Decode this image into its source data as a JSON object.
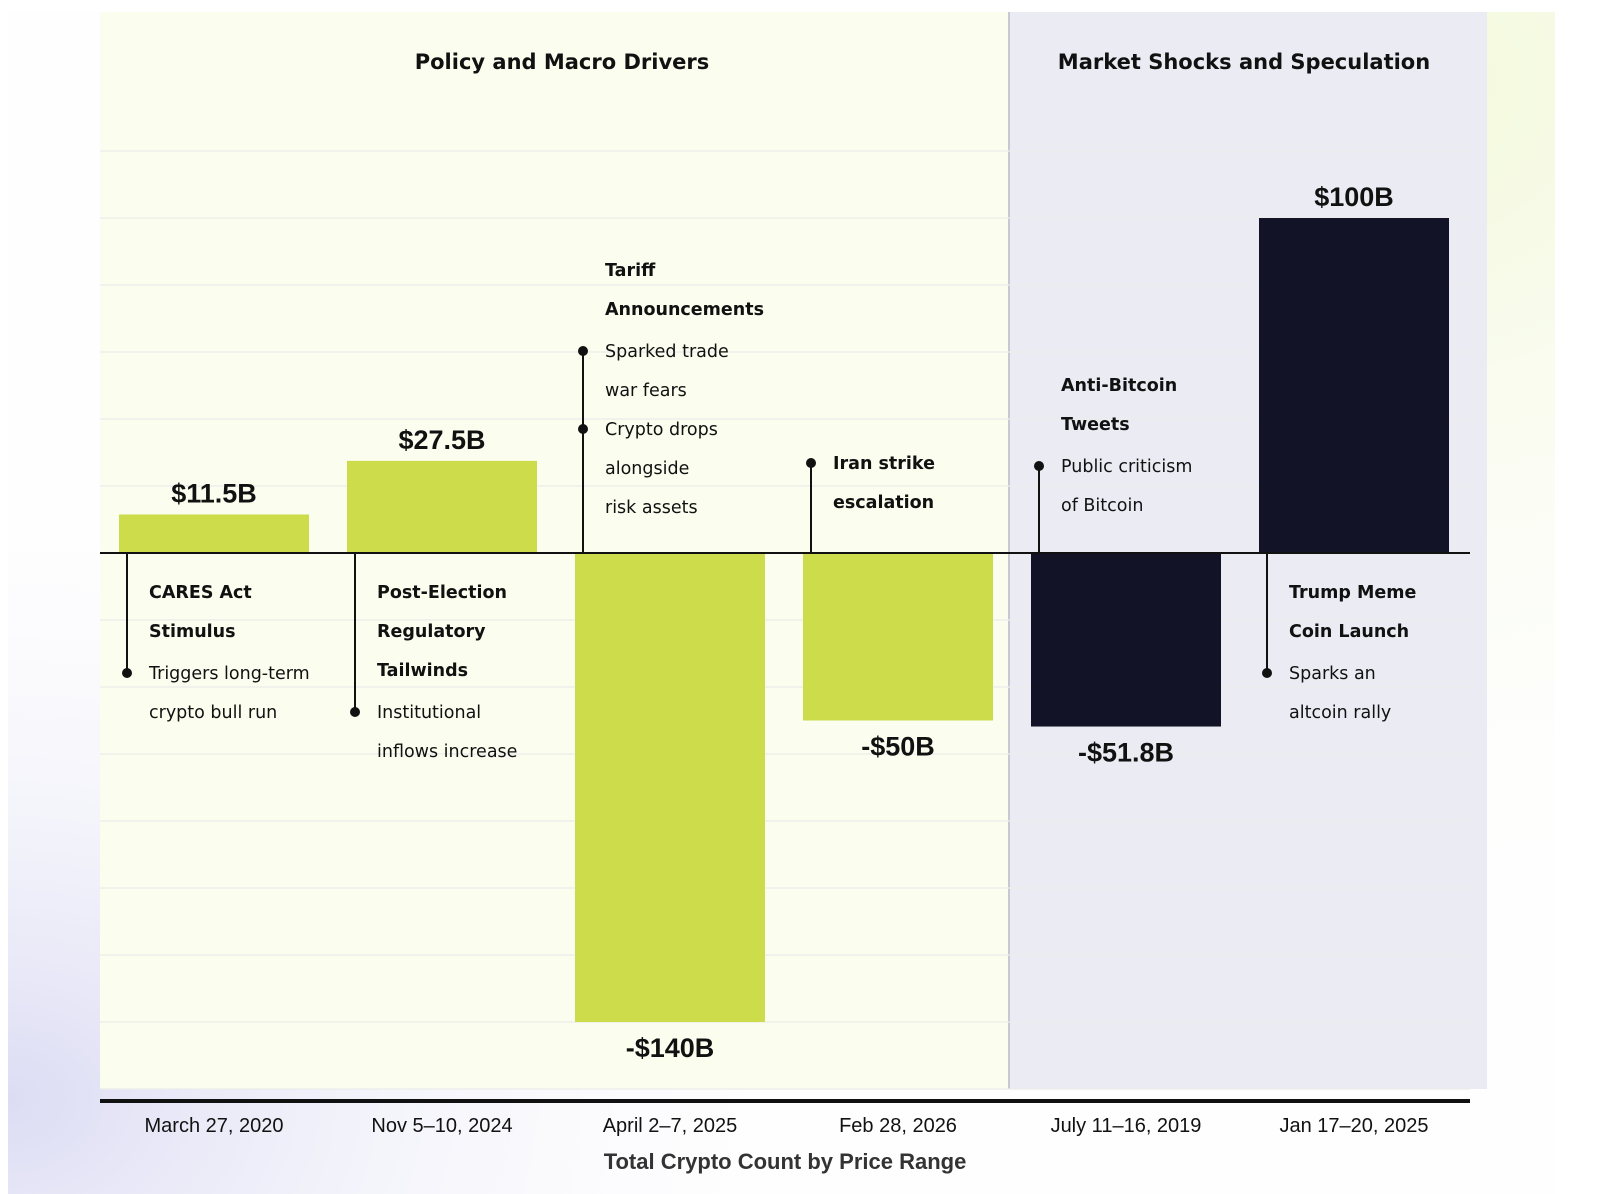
{
  "chart_data": {
    "type": "bar",
    "title": "",
    "xlabel": "Total Crypto Count by Price Range",
    "ylabel": "",
    "ylim": [
      -160,
      120
    ],
    "grid": true,
    "colors": {
      "policy": "#cddc4b",
      "market": "#121327",
      "zero_line": "#111111"
    },
    "sections": [
      {
        "name": "Policy and Macro Drivers",
        "categories": [
          0,
          1,
          2,
          3
        ]
      },
      {
        "name": "Market Shocks and Speculation",
        "categories": [
          4,
          5
        ]
      }
    ],
    "categories": [
      "March 27, 2020",
      "Nov 5–10, 2024",
      "April 2–7, 2025",
      "Feb 28, 2026",
      "July 11–16, 2019",
      "Jan 17–20, 2025"
    ],
    "values": [
      11.5,
      27.5,
      -140,
      -50,
      -51.8,
      100
    ],
    "value_labels": [
      "$11.5B",
      "$27.5B",
      "-$140B",
      "-$50B",
      "-$51.8B",
      "$100B"
    ],
    "annotations": [
      {
        "title_lines": [
          "CARES Act",
          "Stimulus"
        ],
        "desc_lines": [
          "Triggers long-term",
          "crypto bull run"
        ]
      },
      {
        "title_lines": [
          "Post-Election",
          "Regulatory",
          "Tailwinds"
        ],
        "desc_lines": [
          "Institutional",
          "inflows increase"
        ]
      },
      {
        "title_lines": [
          "Tariff",
          "Announcements"
        ],
        "desc_lines": [
          "Sparked  trade",
          "war fears",
          "Crypto drops",
          "alongside",
          "risk assets"
        ]
      },
      {
        "title_lines": [
          "Iran strike",
          "escalation"
        ],
        "desc_lines": []
      },
      {
        "title_lines": [
          "Anti-Bitcoin",
          "Tweets"
        ],
        "desc_lines": [
          "Public criticism",
          "of Bitcoin"
        ]
      },
      {
        "title_lines": [
          "Trump Meme",
          "Coin Launch"
        ],
        "desc_lines": [
          "Sparks an",
          "altcoin rally"
        ]
      }
    ]
  }
}
